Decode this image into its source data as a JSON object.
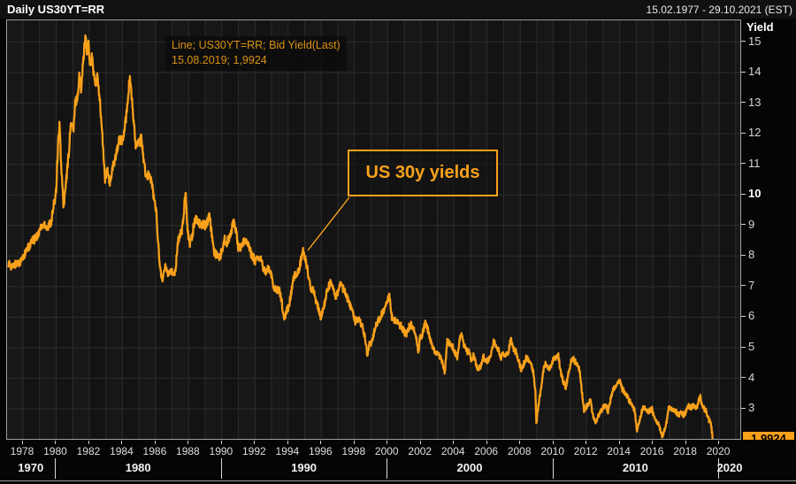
{
  "title_bar": {
    "title": "Daily US30YT=RR",
    "date_range": "15.02.1977 - 29.10.2021 (EST)"
  },
  "legend": {
    "line1": "Line; US30YT=RR; Bid Yield(Last)",
    "line2": "15.08.2019; 1,9924"
  },
  "annotation": {
    "label": "US 30y yields"
  },
  "y_axis": {
    "title": "Yield",
    "ticks": [
      "15",
      "14",
      "13",
      "12",
      "11",
      "10",
      "9",
      "8",
      "7",
      "6",
      "5",
      "4",
      "3"
    ],
    "bold_tick": "10",
    "last_price_badge": "1,9924"
  },
  "x_axis": {
    "year_labels": [
      "1978",
      "1980",
      "1982",
      "1984",
      "1986",
      "1988",
      "1990",
      "1992",
      "1994",
      "1996",
      "1998",
      "2000",
      "2002",
      "2004",
      "2006",
      "2008",
      "2010",
      "2012",
      "2014",
      "2016",
      "2018",
      "2020"
    ],
    "decade_labels": [
      "1970",
      "1980",
      "1990",
      "2000",
      "2010",
      "2020"
    ]
  },
  "colors": {
    "line": "#F9A11B",
    "legend_text": "#DB9212",
    "annotation_border": "#F9A11B",
    "badge_bg": "#F9A11B",
    "grid": "#2c2c2c",
    "plot_bg": "#131313",
    "frame": "#9f9f9f"
  },
  "chart_data": {
    "type": "line",
    "title": "US 30y yields",
    "instrument": "US30YT=RR",
    "field": "Bid Yield(Last)",
    "x_range": [
      1977.12,
      2021.83
    ],
    "y_ticks": [
      3,
      4,
      5,
      6,
      7,
      8,
      9,
      10,
      11,
      12,
      13,
      14,
      15
    ],
    "last_point": {
      "date": "15.08.2019",
      "value": 1.9924
    },
    "points": [
      [
        1977.12,
        7.7
      ],
      [
        1977.2,
        7.75
      ],
      [
        1977.35,
        7.62
      ],
      [
        1977.5,
        7.72
      ],
      [
        1977.7,
        7.78
      ],
      [
        1977.9,
        7.85
      ],
      [
        1978.1,
        8.05
      ],
      [
        1978.3,
        8.25
      ],
      [
        1978.5,
        8.45
      ],
      [
        1978.7,
        8.55
      ],
      [
        1978.9,
        8.7
      ],
      [
        1979.1,
        8.95
      ],
      [
        1979.3,
        9.05
      ],
      [
        1979.5,
        8.92
      ],
      [
        1979.7,
        9.15
      ],
      [
        1979.85,
        9.6
      ],
      [
        1980.0,
        10.2
      ],
      [
        1980.12,
        11.7
      ],
      [
        1980.2,
        12.3
      ],
      [
        1980.3,
        11.0
      ],
      [
        1980.45,
        9.6
      ],
      [
        1980.6,
        10.4
      ],
      [
        1980.75,
        11.3
      ],
      [
        1980.9,
        12.4
      ],
      [
        1981.05,
        12.1
      ],
      [
        1981.15,
        13.0
      ],
      [
        1981.3,
        13.25
      ],
      [
        1981.4,
        13.9
      ],
      [
        1981.5,
        13.5
      ],
      [
        1981.62,
        14.3
      ],
      [
        1981.7,
        14.8
      ],
      [
        1981.78,
        15.2
      ],
      [
        1981.85,
        14.6
      ],
      [
        1981.95,
        15.0
      ],
      [
        1982.05,
        14.2
      ],
      [
        1982.15,
        14.55
      ],
      [
        1982.3,
        13.8
      ],
      [
        1982.4,
        13.55
      ],
      [
        1982.5,
        13.9
      ],
      [
        1982.65,
        13.0
      ],
      [
        1982.8,
        11.8
      ],
      [
        1982.95,
        10.5
      ],
      [
        1983.1,
        10.75
      ],
      [
        1983.25,
        10.4
      ],
      [
        1983.45,
        10.95
      ],
      [
        1983.65,
        11.45
      ],
      [
        1983.85,
        11.85
      ],
      [
        1984.0,
        11.75
      ],
      [
        1984.15,
        12.2
      ],
      [
        1984.3,
        13.0
      ],
      [
        1984.45,
        13.9
      ],
      [
        1984.6,
        12.9
      ],
      [
        1984.8,
        11.6
      ],
      [
        1985.0,
        11.7
      ],
      [
        1985.15,
        11.85
      ],
      [
        1985.3,
        11.05
      ],
      [
        1985.45,
        10.5
      ],
      [
        1985.6,
        10.7
      ],
      [
        1985.75,
        10.45
      ],
      [
        1985.9,
        9.9
      ],
      [
        1986.05,
        9.4
      ],
      [
        1986.2,
        8.05
      ],
      [
        1986.32,
        7.4
      ],
      [
        1986.45,
        7.25
      ],
      [
        1986.6,
        7.7
      ],
      [
        1986.75,
        7.45
      ],
      [
        1986.9,
        7.55
      ],
      [
        1987.05,
        7.4
      ],
      [
        1987.2,
        7.55
      ],
      [
        1987.35,
        8.45
      ],
      [
        1987.45,
        8.7
      ],
      [
        1987.6,
        8.85
      ],
      [
        1987.72,
        9.5
      ],
      [
        1987.8,
        10.2
      ],
      [
        1987.92,
        8.95
      ],
      [
        1988.05,
        8.4
      ],
      [
        1988.2,
        8.65
      ],
      [
        1988.35,
        9.15
      ],
      [
        1988.5,
        9.25
      ],
      [
        1988.65,
        9.05
      ],
      [
        1988.8,
        9.05
      ],
      [
        1989.0,
        9.0
      ],
      [
        1989.15,
        9.15
      ],
      [
        1989.25,
        9.3
      ],
      [
        1989.4,
        8.65
      ],
      [
        1989.55,
        8.1
      ],
      [
        1989.7,
        8.05
      ],
      [
        1989.85,
        7.9
      ],
      [
        1990.0,
        8.2
      ],
      [
        1990.15,
        8.55
      ],
      [
        1990.3,
        8.45
      ],
      [
        1990.45,
        8.6
      ],
      [
        1990.6,
        8.9
      ],
      [
        1990.72,
        9.1
      ],
      [
        1990.85,
        8.85
      ],
      [
        1991.0,
        8.25
      ],
      [
        1991.15,
        8.3
      ],
      [
        1991.3,
        8.45
      ],
      [
        1991.45,
        8.5
      ],
      [
        1991.6,
        8.4
      ],
      [
        1991.75,
        8.1
      ],
      [
        1991.9,
        7.95
      ],
      [
        1992.05,
        7.8
      ],
      [
        1992.2,
        7.95
      ],
      [
        1992.35,
        7.9
      ],
      [
        1992.5,
        7.6
      ],
      [
        1992.65,
        7.45
      ],
      [
        1992.8,
        7.65
      ],
      [
        1993.0,
        7.3
      ],
      [
        1993.15,
        6.95
      ],
      [
        1993.3,
        6.85
      ],
      [
        1993.45,
        6.9
      ],
      [
        1993.6,
        6.55
      ],
      [
        1993.75,
        5.95
      ],
      [
        1993.9,
        6.2
      ],
      [
        1994.05,
        6.35
      ],
      [
        1994.2,
        6.9
      ],
      [
        1994.35,
        7.3
      ],
      [
        1994.5,
        7.45
      ],
      [
        1994.65,
        7.55
      ],
      [
        1994.8,
        7.95
      ],
      [
        1994.9,
        8.18
      ],
      [
        1995.05,
        7.85
      ],
      [
        1995.2,
        7.45
      ],
      [
        1995.35,
        6.95
      ],
      [
        1995.5,
        6.9
      ],
      [
        1995.65,
        6.6
      ],
      [
        1995.8,
        6.35
      ],
      [
        1995.95,
        6.0
      ],
      [
        1996.1,
        6.2
      ],
      [
        1996.25,
        6.6
      ],
      [
        1996.4,
        6.95
      ],
      [
        1996.55,
        7.1
      ],
      [
        1996.7,
        6.95
      ],
      [
        1996.85,
        6.6
      ],
      [
        1997.0,
        6.8
      ],
      [
        1997.15,
        7.1
      ],
      [
        1997.3,
        6.95
      ],
      [
        1997.45,
        6.8
      ],
      [
        1997.6,
        6.55
      ],
      [
        1997.75,
        6.35
      ],
      [
        1997.9,
        6.1
      ],
      [
        1998.05,
        5.85
      ],
      [
        1998.2,
        5.95
      ],
      [
        1998.35,
        5.85
      ],
      [
        1998.5,
        5.65
      ],
      [
        1998.65,
        5.25
      ],
      [
        1998.78,
        4.72
      ],
      [
        1998.9,
        5.1
      ],
      [
        1999.05,
        5.2
      ],
      [
        1999.2,
        5.55
      ],
      [
        1999.35,
        5.8
      ],
      [
        1999.5,
        5.95
      ],
      [
        1999.65,
        6.1
      ],
      [
        1999.8,
        6.25
      ],
      [
        1999.95,
        6.45
      ],
      [
        2000.1,
        6.72
      ],
      [
        2000.25,
        6.0
      ],
      [
        2000.4,
        5.9
      ],
      [
        2000.55,
        5.85
      ],
      [
        2000.7,
        5.75
      ],
      [
        2000.85,
        5.7
      ],
      [
        2001.0,
        5.5
      ],
      [
        2001.15,
        5.45
      ],
      [
        2001.3,
        5.7
      ],
      [
        2001.45,
        5.75
      ],
      [
        2001.6,
        5.55
      ],
      [
        2001.75,
        5.3
      ],
      [
        2001.85,
        4.8
      ],
      [
        2001.95,
        5.3
      ],
      [
        2002.1,
        5.45
      ],
      [
        2002.25,
        5.8
      ],
      [
        2002.4,
        5.65
      ],
      [
        2002.55,
        5.35
      ],
      [
        2002.7,
        5.05
      ],
      [
        2002.85,
        4.85
      ],
      [
        2003.0,
        4.85
      ],
      [
        2003.15,
        4.7
      ],
      [
        2003.3,
        4.5
      ],
      [
        2003.45,
        4.2
      ],
      [
        2003.6,
        5.2
      ],
      [
        2003.75,
        5.15
      ],
      [
        2003.9,
        5.05
      ],
      [
        2004.05,
        4.85
      ],
      [
        2004.2,
        4.7
      ],
      [
        2004.35,
        5.3
      ],
      [
        2004.45,
        5.45
      ],
      [
        2004.6,
        5.1
      ],
      [
        2004.75,
        4.9
      ],
      [
        2004.9,
        4.85
      ],
      [
        2005.05,
        4.6
      ],
      [
        2005.2,
        4.75
      ],
      [
        2005.35,
        4.4
      ],
      [
        2005.5,
        4.3
      ],
      [
        2005.65,
        4.45
      ],
      [
        2005.8,
        4.7
      ],
      [
        2005.95,
        4.55
      ],
      [
        2006.1,
        4.6
      ],
      [
        2006.25,
        4.85
      ],
      [
        2006.4,
        5.2
      ],
      [
        2006.55,
        5.05
      ],
      [
        2006.7,
        4.9
      ],
      [
        2006.85,
        4.7
      ],
      [
        2007.0,
        4.8
      ],
      [
        2007.15,
        4.75
      ],
      [
        2007.3,
        4.9
      ],
      [
        2007.45,
        5.3
      ],
      [
        2007.6,
        4.95
      ],
      [
        2007.75,
        4.85
      ],
      [
        2007.9,
        4.6
      ],
      [
        2008.05,
        4.3
      ],
      [
        2008.2,
        4.45
      ],
      [
        2008.35,
        4.65
      ],
      [
        2008.5,
        4.6
      ],
      [
        2008.65,
        4.45
      ],
      [
        2008.8,
        4.2
      ],
      [
        2008.92,
        3.5
      ],
      [
        2008.97,
        2.55
      ],
      [
        2009.1,
        3.1
      ],
      [
        2009.25,
        3.65
      ],
      [
        2009.4,
        4.25
      ],
      [
        2009.55,
        4.5
      ],
      [
        2009.7,
        4.3
      ],
      [
        2009.85,
        4.35
      ],
      [
        2010.0,
        4.6
      ],
      [
        2010.15,
        4.65
      ],
      [
        2010.3,
        4.75
      ],
      [
        2010.45,
        4.15
      ],
      [
        2010.6,
        3.9
      ],
      [
        2010.75,
        3.7
      ],
      [
        2010.9,
        4.15
      ],
      [
        2011.05,
        4.5
      ],
      [
        2011.15,
        4.7
      ],
      [
        2011.3,
        4.55
      ],
      [
        2011.45,
        4.4
      ],
      [
        2011.6,
        4.25
      ],
      [
        2011.75,
        3.4
      ],
      [
        2011.85,
        2.9
      ],
      [
        2011.95,
        3.05
      ],
      [
        2012.1,
        3.15
      ],
      [
        2012.25,
        3.3
      ],
      [
        2012.4,
        2.75
      ],
      [
        2012.55,
        2.55
      ],
      [
        2012.7,
        2.75
      ],
      [
        2012.85,
        2.9
      ],
      [
        2013.0,
        3.05
      ],
      [
        2013.15,
        3.15
      ],
      [
        2013.3,
        2.9
      ],
      [
        2013.45,
        3.3
      ],
      [
        2013.6,
        3.65
      ],
      [
        2013.75,
        3.75
      ],
      [
        2013.9,
        3.9
      ],
      [
        2014.0,
        3.95
      ],
      [
        2014.15,
        3.65
      ],
      [
        2014.3,
        3.55
      ],
      [
        2014.45,
        3.4
      ],
      [
        2014.6,
        3.25
      ],
      [
        2014.75,
        3.1
      ],
      [
        2014.9,
        2.95
      ],
      [
        2015.05,
        2.25
      ],
      [
        2015.2,
        2.6
      ],
      [
        2015.35,
        2.95
      ],
      [
        2015.5,
        3.1
      ],
      [
        2015.65,
        2.9
      ],
      [
        2015.8,
        2.95
      ],
      [
        2015.95,
        3.0
      ],
      [
        2016.1,
        2.7
      ],
      [
        2016.25,
        2.6
      ],
      [
        2016.4,
        2.4
      ],
      [
        2016.55,
        2.1
      ],
      [
        2016.7,
        2.3
      ],
      [
        2016.85,
        2.6
      ],
      [
        2016.95,
        3.05
      ],
      [
        2017.1,
        3.0
      ],
      [
        2017.25,
        3.0
      ],
      [
        2017.4,
        2.9
      ],
      [
        2017.55,
        2.8
      ],
      [
        2017.7,
        2.85
      ],
      [
        2017.85,
        2.8
      ],
      [
        2018.0,
        2.9
      ],
      [
        2018.15,
        3.1
      ],
      [
        2018.3,
        3.05
      ],
      [
        2018.45,
        3.1
      ],
      [
        2018.6,
        3.0
      ],
      [
        2018.75,
        3.2
      ],
      [
        2018.85,
        3.45
      ],
      [
        2018.95,
        3.15
      ],
      [
        2019.1,
        3.0
      ],
      [
        2019.25,
        2.9
      ],
      [
        2019.4,
        2.6
      ],
      [
        2019.5,
        2.55
      ],
      [
        2019.58,
        2.2
      ],
      [
        2019.62,
        1.9924
      ]
    ]
  }
}
